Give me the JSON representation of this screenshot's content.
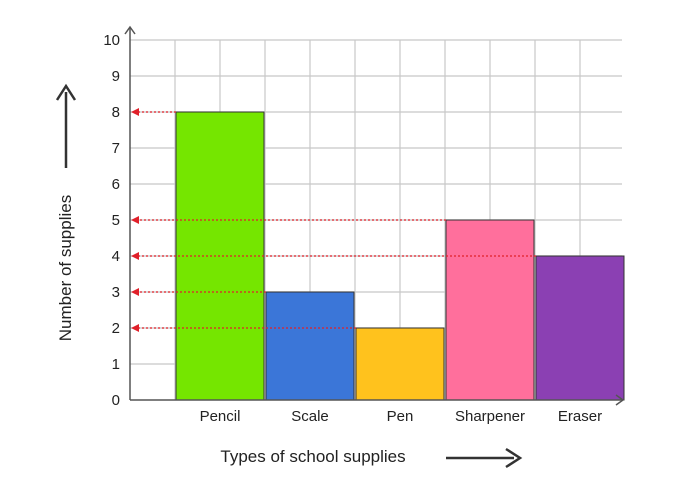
{
  "chart_data": {
    "type": "bar",
    "categories": [
      "Pencil",
      "Scale",
      "Pen",
      "Sharpener",
      "Eraser"
    ],
    "values": [
      8,
      3,
      2,
      5,
      4
    ],
    "colors": [
      "#75e600",
      "#3b76d8",
      "#ffc21d",
      "#ff6f9c",
      "#8b40b3"
    ],
    "xlabel": "Types of school supplies",
    "ylabel": "Number of supplies",
    "ylim": [
      0,
      10
    ],
    "yticks": [
      0,
      1,
      2,
      3,
      4,
      5,
      6,
      7,
      8,
      9,
      10
    ],
    "grid": true,
    "grid_color": "#c8c8c8",
    "axis_color": "#555555",
    "reference_line_color": "#e0202a",
    "reference_lines": "dotted arrows from each bar top to the y-axis"
  }
}
